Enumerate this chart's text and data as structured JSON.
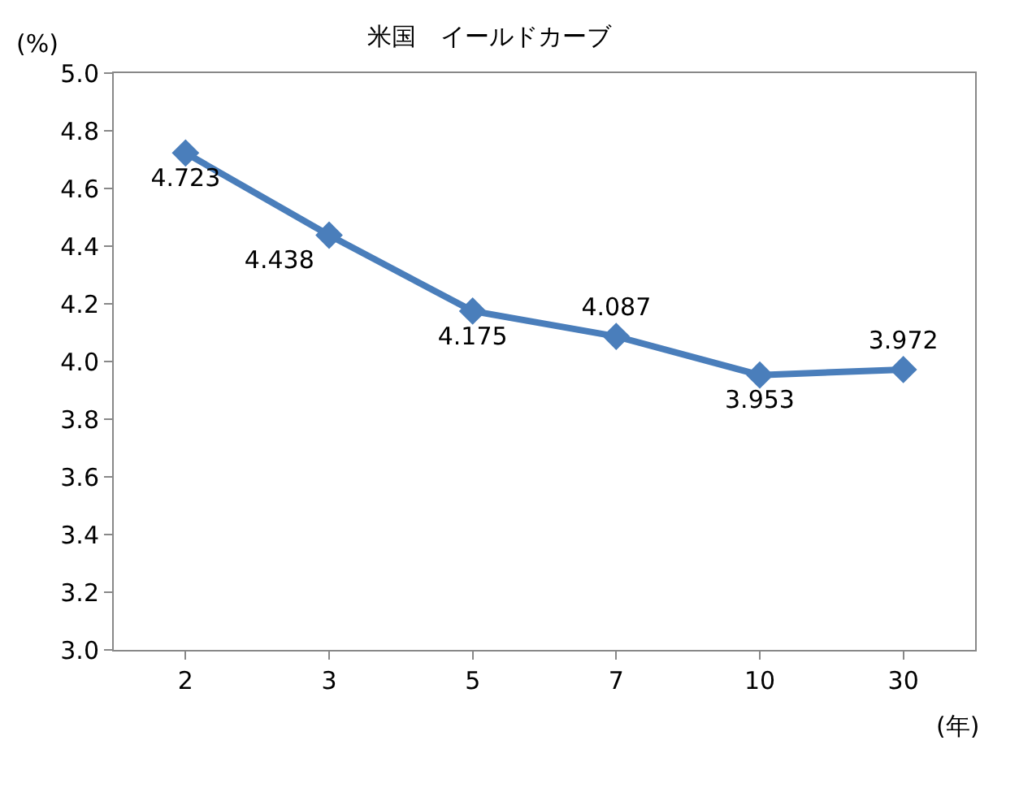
{
  "chart_data": {
    "type": "line",
    "title": "米国　イールドカーブ",
    "ylabel": "(%)",
    "xlabel": "(年)",
    "categories": [
      "2",
      "3",
      "5",
      "7",
      "10",
      "30"
    ],
    "series": [
      {
        "color": "#4a7ebb",
        "values": [
          4.723,
          4.438,
          4.175,
          4.087,
          3.953,
          3.972
        ]
      }
    ],
    "ylim": [
      3.0,
      5.0
    ],
    "yticks": [
      {
        "value": 3.0,
        "label": "3.0"
      },
      {
        "value": 3.2,
        "label": "3.2"
      },
      {
        "value": 3.4,
        "label": "3.4"
      },
      {
        "value": 3.6,
        "label": "3.6"
      },
      {
        "value": 3.8,
        "label": "3.8"
      },
      {
        "value": 4.0,
        "label": "4.0"
      },
      {
        "value": 4.2,
        "label": "4.2"
      },
      {
        "value": 4.4,
        "label": "4.4"
      },
      {
        "value": 4.6,
        "label": "4.6"
      },
      {
        "value": 4.8,
        "label": "4.8"
      },
      {
        "value": 5.0,
        "label": "5.0"
      }
    ],
    "data_labels": true,
    "marker": "diamond",
    "line_style": "solid",
    "grid": false,
    "legend": false
  }
}
